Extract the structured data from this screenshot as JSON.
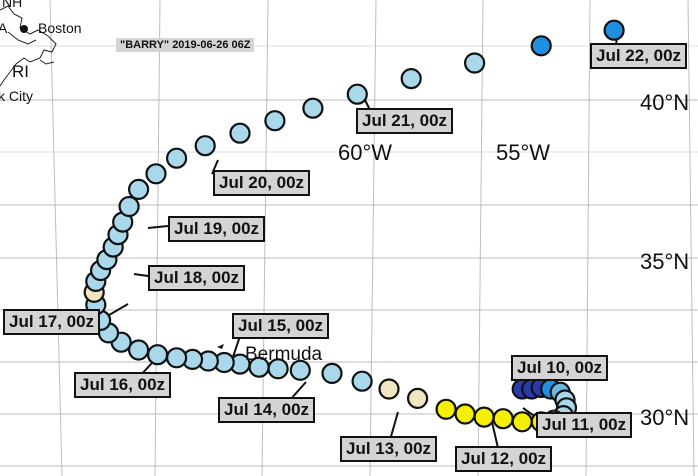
{
  "title": "\"BARRY\" 2019-06-26 06Z",
  "colors": {
    "light_blue": "#a8d8ea",
    "mid_blue": "#6cb8e0",
    "blue": "#1f8fe0",
    "dark_blue": "#2a3aa8",
    "beige": "#f2e6c2",
    "yellow": "#f5f000"
  },
  "axis_labels": {
    "lat_40": "40°N",
    "lat_35": "35°N",
    "lat_30": "30°N",
    "lon_60": "60°W",
    "lon_55": "55°W"
  },
  "places": {
    "boston": "Boston",
    "ri": "RI",
    "nyc": "k City",
    "bermuda": "Bermuda",
    "nh": "NH",
    "ma": "A"
  },
  "date_labels": [
    "Jul 10, 00z",
    "Jul 11, 00z",
    "Jul 12, 00z",
    "Jul 13, 00z",
    "Jul 14, 00z",
    "Jul 15, 00z",
    "Jul 16, 00z",
    "Jul 17, 00z",
    "Jul 18, 00z",
    "Jul 19, 00z",
    "Jul 20, 00z",
    "Jul 21, 00z",
    "Jul 22, 00z"
  ],
  "track": [
    {
      "lon": -55.2,
      "lat": 30.8,
      "c": "dark_blue"
    },
    {
      "lon": -54.9,
      "lat": 30.8,
      "c": "dark_blue"
    },
    {
      "lon": -54.6,
      "lat": 30.85,
      "c": "dark_blue"
    },
    {
      "lon": -54.3,
      "lat": 30.8,
      "c": "blue"
    },
    {
      "lon": -54.0,
      "lat": 30.7,
      "c": "mid_blue"
    },
    {
      "lon": -53.85,
      "lat": 30.45,
      "c": "light_blue"
    },
    {
      "lon": -53.8,
      "lat": 30.2,
      "c": "light_blue"
    },
    {
      "lon": -53.9,
      "lat": 29.95,
      "c": "light_blue"
    },
    {
      "lon": -54.2,
      "lat": 29.8,
      "c": "beige"
    },
    {
      "lon": -54.6,
      "lat": 29.75,
      "c": "yellow"
    },
    {
      "lon": -55.2,
      "lat": 29.75,
      "c": "yellow"
    },
    {
      "lon": -55.8,
      "lat": 29.85,
      "c": "yellow"
    },
    {
      "lon": -56.4,
      "lat": 29.9,
      "c": "yellow"
    },
    {
      "lon": -57.0,
      "lat": 30.0,
      "c": "yellow"
    },
    {
      "lon": -57.6,
      "lat": 30.15,
      "c": "yellow"
    },
    {
      "lon": -58.5,
      "lat": 30.5,
      "c": "beige"
    },
    {
      "lon": -59.4,
      "lat": 30.8,
      "c": "beige"
    },
    {
      "lon": -60.25,
      "lat": 31.05,
      "c": "light_blue"
    },
    {
      "lon": -61.2,
      "lat": 31.3,
      "c": "light_blue"
    },
    {
      "lon": -62.2,
      "lat": 31.4,
      "c": "light_blue"
    },
    {
      "lon": -62.9,
      "lat": 31.45,
      "c": "light_blue"
    },
    {
      "lon": -63.5,
      "lat": 31.5,
      "c": "light_blue"
    },
    {
      "lon": -64.1,
      "lat": 31.6,
      "c": "light_blue"
    },
    {
      "lon": -64.6,
      "lat": 31.65,
      "c": "light_blue"
    },
    {
      "lon": -65.1,
      "lat": 31.7,
      "c": "light_blue"
    },
    {
      "lon": -65.6,
      "lat": 31.75,
      "c": "light_blue"
    },
    {
      "lon": -66.1,
      "lat": 31.8,
      "c": "light_blue"
    },
    {
      "lon": -66.7,
      "lat": 31.9,
      "c": "light_blue"
    },
    {
      "lon": -67.3,
      "lat": 32.05,
      "c": "light_blue"
    },
    {
      "lon": -67.85,
      "lat": 32.3,
      "c": "light_blue"
    },
    {
      "lon": -68.25,
      "lat": 32.6,
      "c": "light_blue"
    },
    {
      "lon": -68.5,
      "lat": 33.0,
      "c": "light_blue"
    },
    {
      "lon": -68.65,
      "lat": 33.5,
      "c": "light_blue"
    },
    {
      "lon": -68.7,
      "lat": 33.9,
      "c": "beige"
    },
    {
      "lon": -68.65,
      "lat": 34.25,
      "c": "light_blue"
    },
    {
      "lon": -68.5,
      "lat": 34.6,
      "c": "light_blue"
    },
    {
      "lon": -68.3,
      "lat": 34.95,
      "c": "light_blue"
    },
    {
      "lon": -68.1,
      "lat": 35.35,
      "c": "light_blue"
    },
    {
      "lon": -67.95,
      "lat": 35.75,
      "c": "light_blue"
    },
    {
      "lon": -67.8,
      "lat": 36.15,
      "c": "light_blue"
    },
    {
      "lon": -67.6,
      "lat": 36.65,
      "c": "light_blue"
    },
    {
      "lon": -67.3,
      "lat": 37.2,
      "c": "light_blue"
    },
    {
      "lon": -66.75,
      "lat": 37.7,
      "c": "light_blue"
    },
    {
      "lon": -66.1,
      "lat": 38.2,
      "c": "light_blue"
    },
    {
      "lon": -65.2,
      "lat": 38.6,
      "c": "light_blue"
    },
    {
      "lon": -64.1,
      "lat": 39.0,
      "c": "light_blue"
    },
    {
      "lon": -63.0,
      "lat": 39.4,
      "c": "light_blue"
    },
    {
      "lon": -61.8,
      "lat": 39.8,
      "c": "light_blue"
    },
    {
      "lon": -60.4,
      "lat": 40.25,
      "c": "light_blue"
    },
    {
      "lon": -58.7,
      "lat": 40.75,
      "c": "light_blue"
    },
    {
      "lon": -56.7,
      "lat": 41.25,
      "c": "light_blue"
    },
    {
      "lon": -54.6,
      "lat": 41.8,
      "c": "blue"
    },
    {
      "lon": -52.3,
      "lat": 42.3,
      "c": "blue"
    }
  ]
}
